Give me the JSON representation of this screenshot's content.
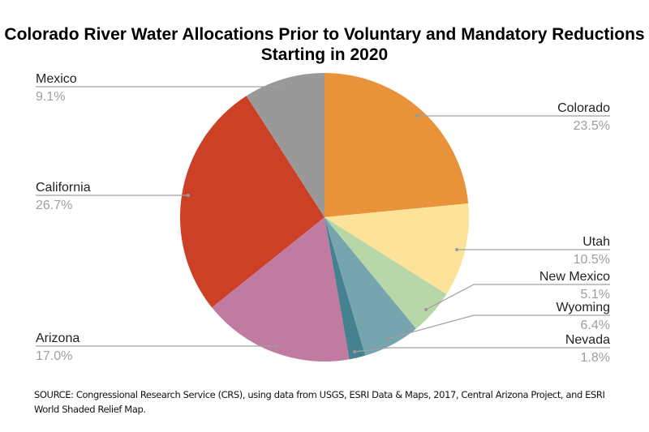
{
  "chart_data": {
    "type": "pie",
    "title": "Colorado River Water Allocations Prior to Voluntary and Mandatory Reductions Starting in 2020",
    "start": "top",
    "direction": "clockwise",
    "slices": [
      {
        "label": "Colorado",
        "value": 23.5,
        "display": "23.5%",
        "color": "#E8923A"
      },
      {
        "label": "Utah",
        "value": 10.5,
        "display": "10.5%",
        "color": "#FDE39A"
      },
      {
        "label": "New Mexico",
        "value": 5.1,
        "display": "5.1%",
        "color": "#B7D7A8"
      },
      {
        "label": "Wyoming",
        "value": 6.4,
        "display": "6.4%",
        "color": "#76A5AF"
      },
      {
        "label": "Nevada",
        "value": 1.8,
        "display": "1.8%",
        "color": "#45818E"
      },
      {
        "label": "Arizona",
        "value": 17.0,
        "display": "17.0%",
        "color": "#C27BA0"
      },
      {
        "label": "California",
        "value": 26.7,
        "display": "26.7%",
        "color": "#CC4125"
      },
      {
        "label": "Mexico",
        "value": 9.1,
        "display": "9.1%",
        "color": "#999999"
      }
    ]
  },
  "source": "SOURCE: Congressional Research Service (CRS), using data from USGS, ESRI Data & Maps, 2017, Central Arizona Project, and ESRI World Shaded Relief Map."
}
